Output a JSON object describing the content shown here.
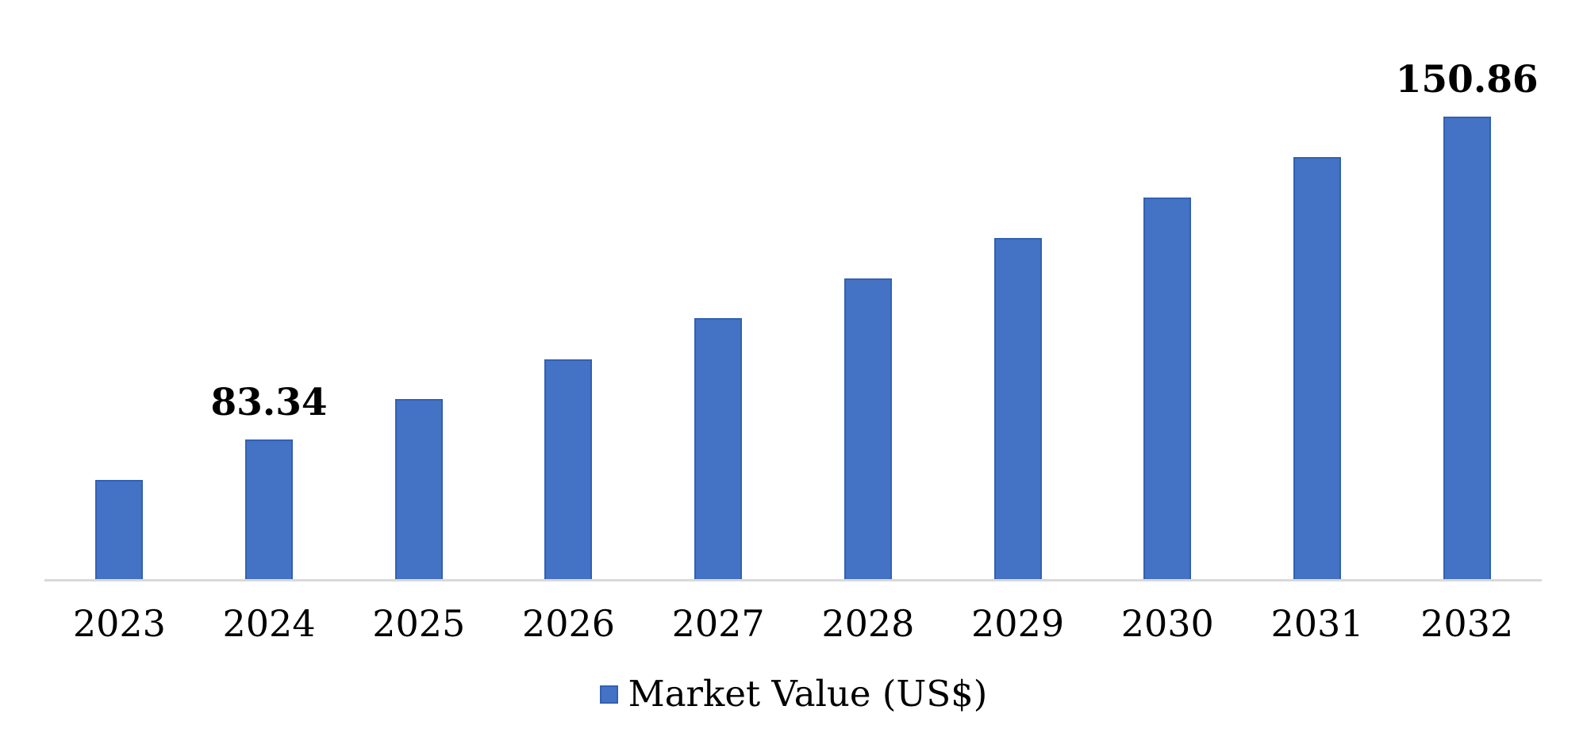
{
  "chart_data": {
    "type": "bar",
    "title": "",
    "xlabel": "",
    "ylabel": "",
    "categories": [
      "2023",
      "2024",
      "2025",
      "2026",
      "2027",
      "2028",
      "2029",
      "2030",
      "2031",
      "2032"
    ],
    "series": [
      {
        "name": "Market Value (US$)",
        "values": [
          74.9,
          83.34,
          91.8,
          100.2,
          108.7,
          117.1,
          125.5,
          134.0,
          142.4,
          150.86
        ]
      }
    ],
    "data_labels": {
      "2024": "83.34",
      "2032": "150.86"
    },
    "labeled_categories": [
      "2024",
      "2032"
    ],
    "value_axis": {
      "visible": false,
      "min": 54.2,
      "max": 153.7
    },
    "grid": false,
    "legend": {
      "position": "bottom",
      "label": "Market Value (US$)"
    },
    "colors": {
      "bar_fill": "#4472C4",
      "bar_border": "#3161B4",
      "axis_line": "#D9D9D9",
      "text": "#000000"
    }
  }
}
